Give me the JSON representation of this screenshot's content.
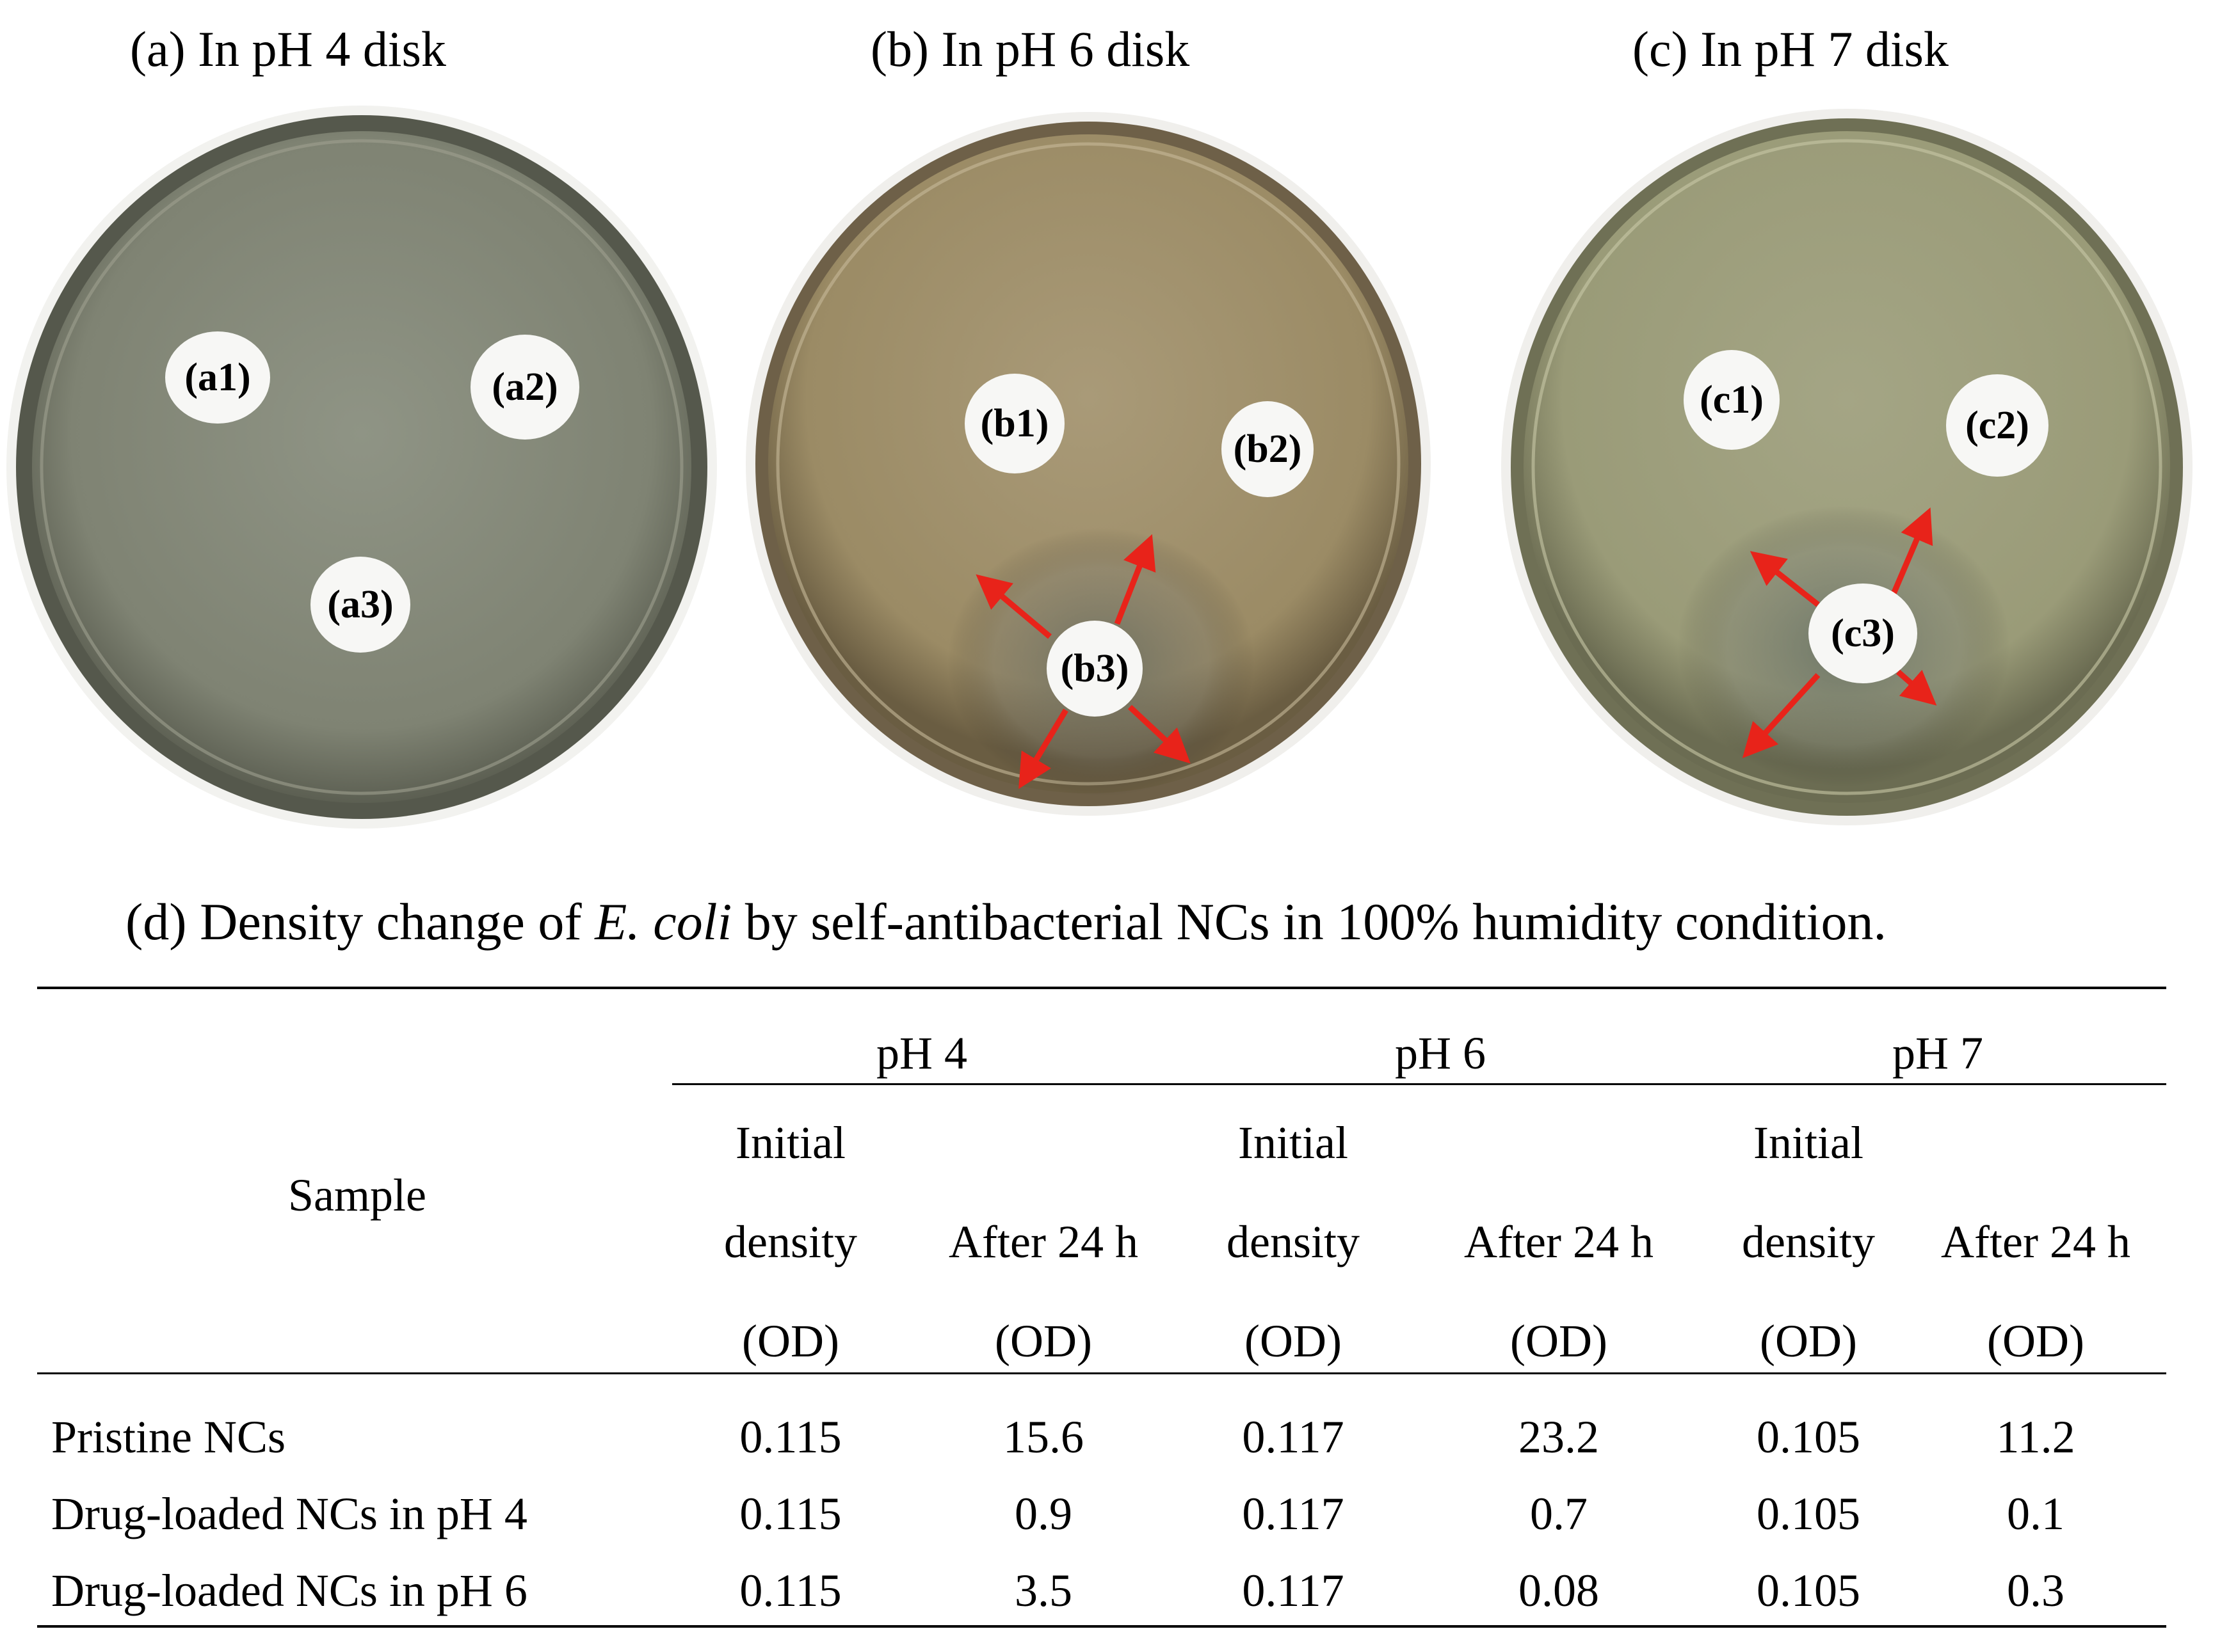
{
  "panels": [
    {
      "title": "(a) In pH 4 disk",
      "disks": [
        "(a1)",
        "(a2)",
        "(a3)"
      ],
      "plate_color": "#8a8d79"
    },
    {
      "title": "(b) In pH 6 disk",
      "disks": [
        "(b1)",
        "(b2)",
        "(b3)"
      ],
      "plate_color": "#a1916c"
    },
    {
      "title": "(c) In pH 7 disk",
      "disks": [
        "(c1)",
        "(c2)",
        "(c3)"
      ],
      "plate_color": "#9c9d79"
    }
  ],
  "arrow_color": "#e8231a",
  "caption": {
    "prefix": "(d) Density change of ",
    "species": "E. coli",
    "suffix": " by self-antibacterial NCs in 100% humidity condition."
  },
  "table": {
    "sample_header": "Sample",
    "groups": [
      "pH 4",
      "pH 6",
      "pH 7"
    ],
    "col_headers": [
      [
        "Initial",
        "density",
        "(OD)"
      ],
      [
        "After 24 h",
        "(OD)"
      ]
    ],
    "rows": [
      {
        "sample": "Pristine NCs",
        "values": [
          "0.115",
          "15.6",
          "0.117",
          "23.2",
          "0.105",
          "11.2"
        ]
      },
      {
        "sample": "Drug-loaded NCs in pH 4",
        "values": [
          "0.115",
          "0.9",
          "0.117",
          "0.7",
          "0.105",
          "0.1"
        ]
      },
      {
        "sample": "Drug-loaded NCs in pH 6",
        "values": [
          "0.115",
          "3.5",
          "0.117",
          "0.08",
          "0.105",
          "0.3"
        ]
      }
    ]
  }
}
